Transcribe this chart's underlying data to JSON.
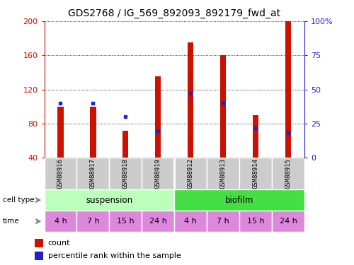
{
  "title": "GDS2768 / IG_569_892093_892179_fwd_at",
  "samples": [
    "GSM88916",
    "GSM88917",
    "GSM88918",
    "GSM88919",
    "GSM88912",
    "GSM88913",
    "GSM88914",
    "GSM88915"
  ],
  "count_values": [
    100,
    100,
    72,
    135,
    175,
    160,
    90,
    200
  ],
  "percentile_values": [
    40,
    40,
    30,
    20,
    47,
    40,
    22,
    18
  ],
  "ymin": 40,
  "ymax": 200,
  "yticks_left": [
    40,
    80,
    120,
    160,
    200
  ],
  "yticks_right": [
    0,
    25,
    50,
    75,
    100
  ],
  "bar_color": "#cc1100",
  "dot_color": "#2222cc",
  "cell_type_labels": [
    "suspension",
    "biofilm"
  ],
  "cell_type_color_light": "#bbffbb",
  "cell_type_color_dark": "#44dd44",
  "time_labels": [
    "4 h",
    "7 h",
    "15 h",
    "24 h",
    "4 h",
    "7 h",
    "15 h",
    "24 h"
  ],
  "time_color": "#dd88dd",
  "sample_bg_color": "#cccccc",
  "title_fontsize": 10,
  "tick_fontsize": 8,
  "bar_width": 0.18
}
